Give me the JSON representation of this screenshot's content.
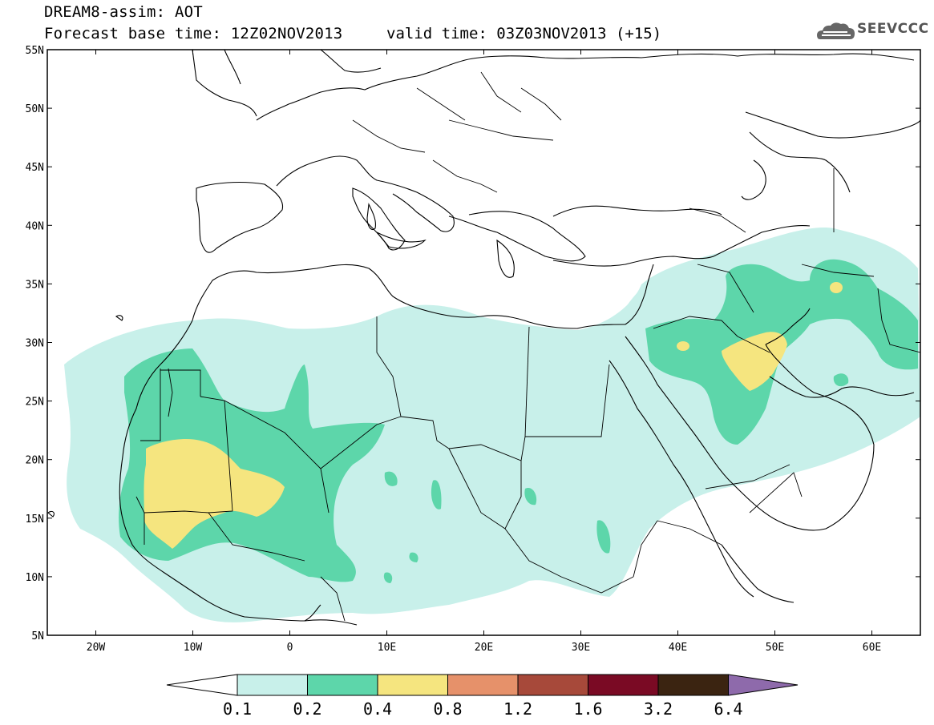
{
  "header": {
    "title": "DREAM8-assim: AOT",
    "base_time": "Forecast base time: 12Z02NOV2013",
    "valid_time": "valid time: 03Z03NOV2013 (+15)",
    "logo_text": "SEEVCCC"
  },
  "map": {
    "lon_range": [
      -25,
      65
    ],
    "lat_range": [
      5,
      55
    ],
    "lat_ticks": [
      {
        "value": 55,
        "label": "55N"
      },
      {
        "value": 50,
        "label": "50N"
      },
      {
        "value": 45,
        "label": "45N"
      },
      {
        "value": 40,
        "label": "40N"
      },
      {
        "value": 35,
        "label": "35N"
      },
      {
        "value": 30,
        "label": "30N"
      },
      {
        "value": 25,
        "label": "25N"
      },
      {
        "value": 20,
        "label": "20N"
      },
      {
        "value": 15,
        "label": "15N"
      },
      {
        "value": 10,
        "label": "10N"
      },
      {
        "value": 5,
        "label": "5N"
      }
    ],
    "lon_ticks": [
      {
        "value": -20,
        "label": "20W"
      },
      {
        "value": -10,
        "label": "10W"
      },
      {
        "value": 0,
        "label": "0"
      },
      {
        "value": 10,
        "label": "10E"
      },
      {
        "value": 20,
        "label": "20E"
      },
      {
        "value": 30,
        "label": "30E"
      },
      {
        "value": 40,
        "label": "40E"
      },
      {
        "value": 50,
        "label": "50E"
      },
      {
        "value": 60,
        "label": "60E"
      }
    ]
  },
  "colorbar": {
    "labels": [
      "0.1",
      "0.2",
      "0.4",
      "0.8",
      "1.2",
      "1.6",
      "3.2",
      "6.4"
    ],
    "colors": [
      "#ffffff",
      "#c8f0ea",
      "#5dd6aa",
      "#f5e57f",
      "#e6916a",
      "#a7493a",
      "#7a0a24",
      "#3b2411",
      "#8e6aab"
    ]
  },
  "colors": {
    "light": "#c8f0ea",
    "medium": "#5dd6aa",
    "high": "#f5e57f",
    "coast": "#000000"
  }
}
